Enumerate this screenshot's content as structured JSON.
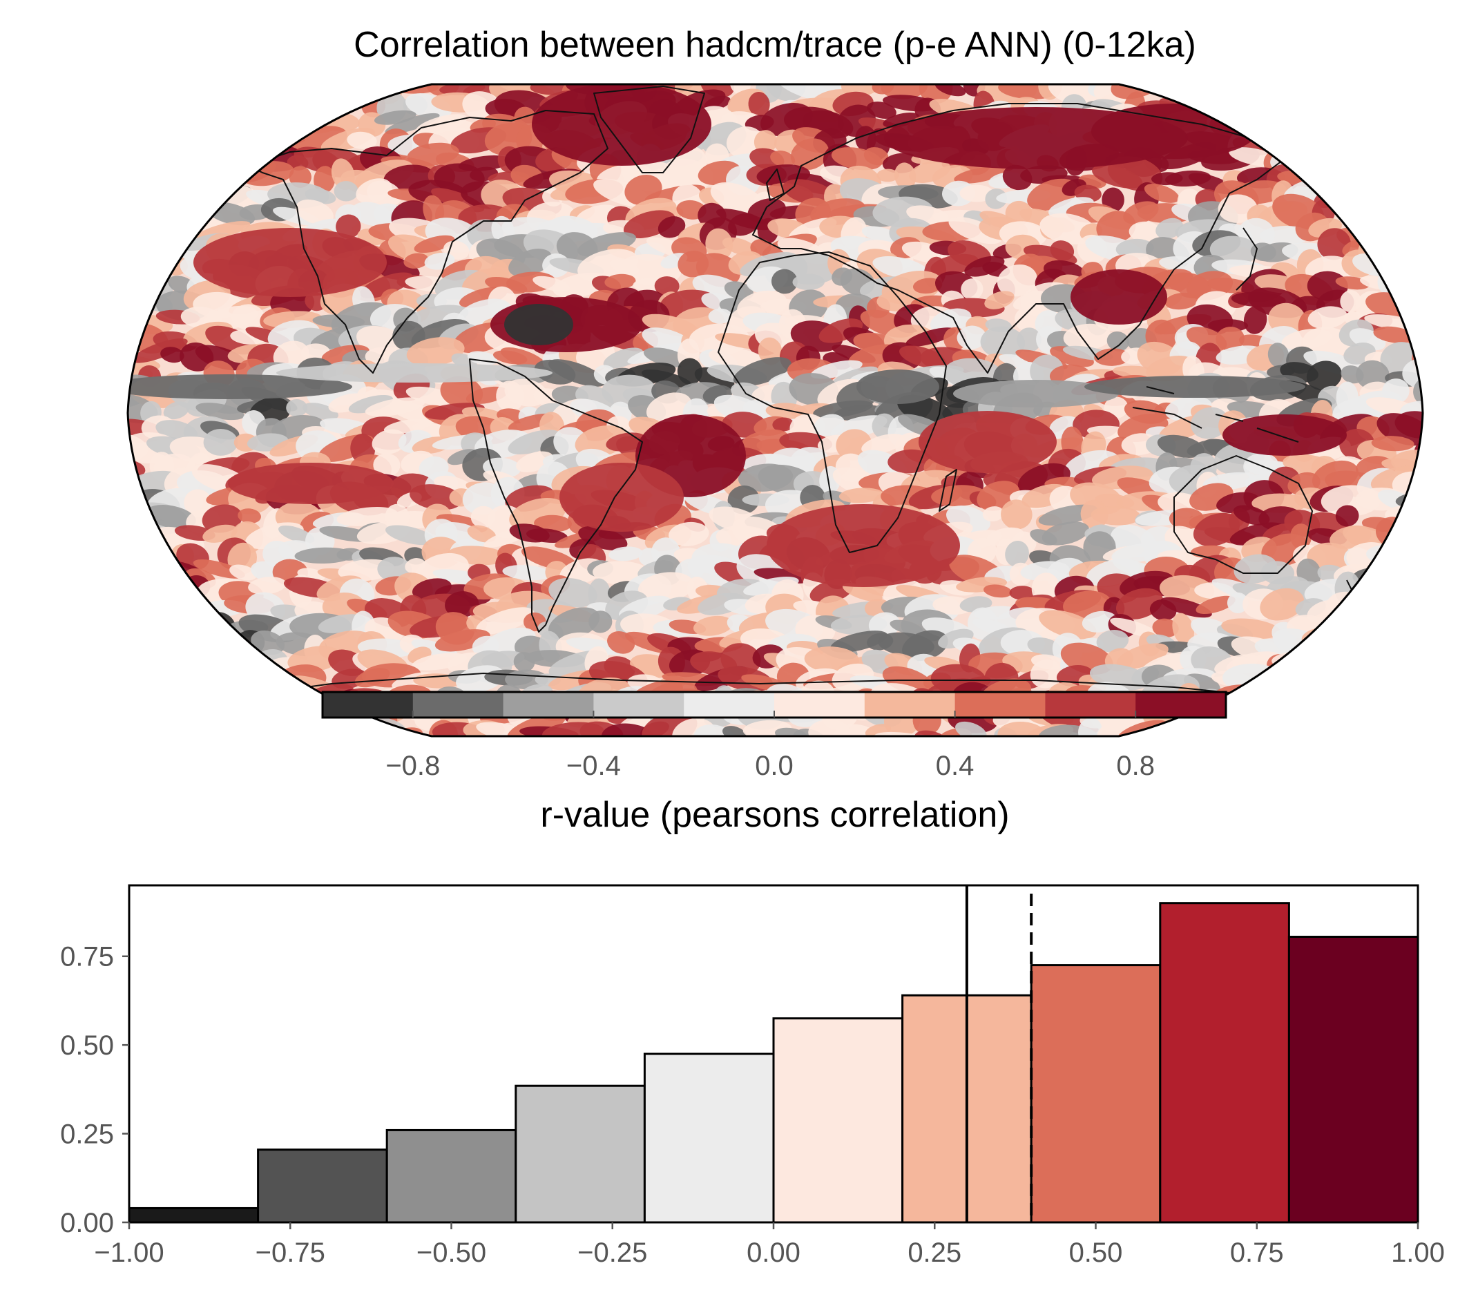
{
  "chart_data": [
    {
      "type": "heatmap",
      "title": "Correlation between hadcm/trace (p-e ANN) (0-12ka)",
      "projection": "Robinson",
      "colormap_bins": [
        {
          "from": -1.0,
          "to": -0.8,
          "color": "#333333"
        },
        {
          "from": -0.8,
          "to": -0.6,
          "color": "#6b6b6b"
        },
        {
          "from": -0.6,
          "to": -0.4,
          "color": "#9e9e9e"
        },
        {
          "from": -0.4,
          "to": -0.2,
          "color": "#cacaca"
        },
        {
          "from": -0.2,
          "to": 0.0,
          "color": "#ececec"
        },
        {
          "from": 0.0,
          "to": 0.2,
          "color": "#fde9e0"
        },
        {
          "from": 0.2,
          "to": 0.4,
          "color": "#f4b89c"
        },
        {
          "from": 0.4,
          "to": 0.6,
          "color": "#dc6e59"
        },
        {
          "from": 0.6,
          "to": 0.8,
          "color": "#b7383c"
        },
        {
          "from": 0.8,
          "to": 1.0,
          "color": "#8b0f26"
        }
      ],
      "colorbar": {
        "ticks": [
          "−0.8",
          "−0.4",
          "0.0",
          "0.4",
          "0.8"
        ],
        "label": "r-value (pearsons correlation)"
      }
    },
    {
      "type": "bar",
      "subtype": "histogram",
      "xlim": [
        -1.0,
        1.0
      ],
      "ylim": [
        0,
        0.95
      ],
      "bins": [
        {
          "from": -1.0,
          "to": -0.8,
          "value": 0.04,
          "color": "#1a1a1a"
        },
        {
          "from": -0.8,
          "to": -0.6,
          "value": 0.205,
          "color": "#535353"
        },
        {
          "from": -0.6,
          "to": -0.4,
          "value": 0.26,
          "color": "#8f8f8f"
        },
        {
          "from": -0.4,
          "to": -0.2,
          "value": 0.385,
          "color": "#c4c4c4"
        },
        {
          "from": -0.2,
          "to": 0.0,
          "value": 0.475,
          "color": "#ececec"
        },
        {
          "from": 0.0,
          "to": 0.2,
          "value": 0.575,
          "color": "#fde8df"
        },
        {
          "from": 0.2,
          "to": 0.4,
          "value": 0.64,
          "color": "#f5b79c"
        },
        {
          "from": 0.4,
          "to": 0.6,
          "value": 0.725,
          "color": "#dc6e59"
        },
        {
          "from": 0.6,
          "to": 0.8,
          "value": 0.9,
          "color": "#b21f2d"
        },
        {
          "from": 0.8,
          "to": 1.0,
          "value": 0.805,
          "color": "#6b0020"
        }
      ],
      "vlines": [
        {
          "x": 0.3,
          "style": "solid"
        },
        {
          "x": 0.4,
          "style": "dashed"
        }
      ],
      "xticks": [
        "−1.00",
        "−0.75",
        "−0.50",
        "−0.25",
        "0.00",
        "0.25",
        "0.50",
        "0.75",
        "1.00"
      ],
      "xtick_values": [
        -1.0,
        -0.75,
        -0.5,
        -0.25,
        0.0,
        0.25,
        0.5,
        0.75,
        1.0
      ],
      "yticks": [
        "0.00",
        "0.25",
        "0.50",
        "0.75"
      ],
      "ytick_values": [
        0.0,
        0.25,
        0.5,
        0.75
      ]
    }
  ]
}
